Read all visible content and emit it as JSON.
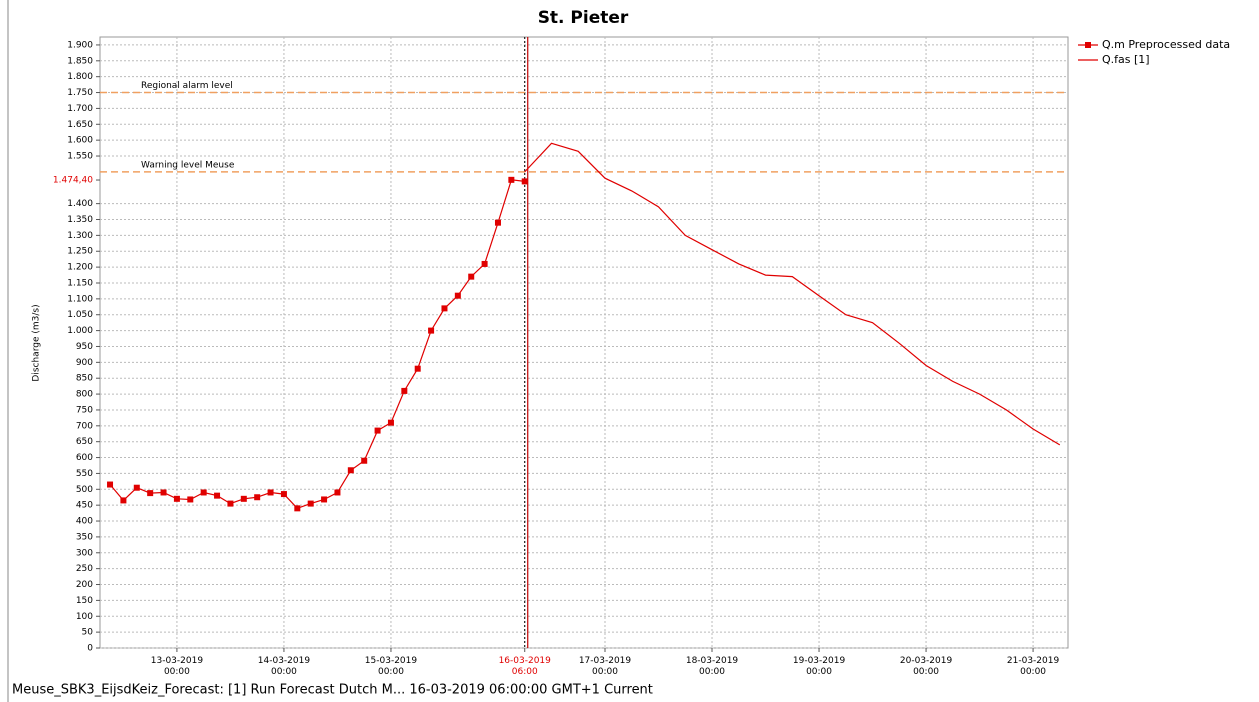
{
  "chart_data": {
    "type": "line",
    "title": "St. Pieter",
    "y_label": "Discharge (m3/s)",
    "footer": "Meuse_SBK3_EijsdKeiz_Forecast: [1] Run Forecast Dutch M... 16-03-2019 06:00:00 GMT+1 Current",
    "series": [
      {
        "name": "Q.m Preprocessed data",
        "color": "#e00000",
        "markers": true,
        "x": [
          "12-03-2019 09:00",
          "12-03-2019 12:00",
          "12-03-2019 15:00",
          "12-03-2019 18:00",
          "12-03-2019 21:00",
          "13-03-2019 00:00",
          "13-03-2019 03:00",
          "13-03-2019 06:00",
          "13-03-2019 09:00",
          "13-03-2019 12:00",
          "13-03-2019 15:00",
          "13-03-2019 18:00",
          "13-03-2019 21:00",
          "14-03-2019 00:00",
          "14-03-2019 03:00",
          "14-03-2019 06:00",
          "14-03-2019 09:00",
          "14-03-2019 12:00",
          "14-03-2019 15:00",
          "14-03-2019 18:00",
          "14-03-2019 21:00",
          "15-03-2019 00:00",
          "15-03-2019 03:00",
          "15-03-2019 06:00",
          "15-03-2019 09:00",
          "15-03-2019 12:00",
          "15-03-2019 15:00",
          "15-03-2019 18:00",
          "15-03-2019 21:00",
          "16-03-2019 00:00",
          "16-03-2019 03:00",
          "16-03-2019 06:00"
        ],
        "values": [
          515,
          465,
          505,
          488,
          490,
          470,
          468,
          490,
          480,
          455,
          470,
          475,
          490,
          485,
          440,
          455,
          468,
          490,
          560,
          590,
          685,
          710,
          810,
          880,
          1000,
          1070,
          1110,
          1170,
          1210,
          1340,
          1475,
          1470
        ]
      },
      {
        "name": "Q.fas [1]",
        "color": "#e00000",
        "markers": false,
        "x": [
          "16-03-2019 06:00",
          "16-03-2019 12:00",
          "16-03-2019 18:00",
          "17-03-2019 00:00",
          "17-03-2019 06:00",
          "17-03-2019 12:00",
          "17-03-2019 18:00",
          "18-03-2019 00:00",
          "18-03-2019 06:00",
          "18-03-2019 12:00",
          "18-03-2019 18:00",
          "19-03-2019 00:00",
          "19-03-2019 06:00",
          "19-03-2019 12:00",
          "19-03-2019 18:00",
          "20-03-2019 00:00",
          "20-03-2019 06:00",
          "20-03-2019 12:00",
          "20-03-2019 18:00",
          "21-03-2019 00:00",
          "21-03-2019 06:00"
        ],
        "values": [
          1500,
          1590,
          1565,
          1480,
          1440,
          1390,
          1300,
          1255,
          1210,
          1175,
          1170,
          1110,
          1050,
          1025,
          960,
          890,
          840,
          800,
          750,
          690,
          640
        ]
      }
    ],
    "reference_lines": [
      {
        "label": "Regional alarm level",
        "value": 1750,
        "color": "#f0a060"
      },
      {
        "label": "Warning level Meuse",
        "value": 1500,
        "color": "#f0a060"
      }
    ],
    "current_time": "16-03-2019 06:00",
    "current_value": {
      "value": 1474.4,
      "label": "1.474,40"
    },
    "xlim": [
      "12-03-2019 06:45",
      "21-03-2019 07:50"
    ],
    "xticks": [
      "13-03-2019 00:00",
      "14-03-2019 00:00",
      "15-03-2019 00:00",
      "16-03-2019 06:00",
      "17-03-2019 00:00",
      "18-03-2019 00:00",
      "19-03-2019 00:00",
      "20-03-2019 00:00",
      "21-03-2019 00:00"
    ],
    "ylim": [
      0,
      1925
    ],
    "yticks": [
      0,
      50,
      100,
      150,
      200,
      250,
      300,
      350,
      400,
      450,
      500,
      550,
      600,
      650,
      700,
      750,
      800,
      850,
      900,
      950,
      {
        "value": 1000,
        "label": "1.000"
      },
      {
        "value": 1050,
        "label": "1.050"
      },
      {
        "value": 1100,
        "label": "1.100"
      },
      {
        "value": 1150,
        "label": "1.150"
      },
      {
        "value": 1200,
        "label": "1.200"
      },
      {
        "value": 1250,
        "label": "1.250"
      },
      {
        "value": 1300,
        "label": "1.300"
      },
      {
        "value": 1350,
        "label": "1.350"
      },
      {
        "value": 1400,
        "label": "1.400"
      },
      {
        "value": 1550,
        "label": "1.550"
      },
      {
        "value": 1600,
        "label": "1.600"
      },
      {
        "value": 1650,
        "label": "1.650"
      },
      {
        "value": 1700,
        "label": "1.700"
      },
      {
        "value": 1750,
        "label": "1.750"
      },
      {
        "value": 1800,
        "label": "1.800"
      },
      {
        "value": 1850,
        "label": "1.850"
      },
      {
        "value": 1900,
        "label": "1.900"
      }
    ],
    "grid": true
  }
}
